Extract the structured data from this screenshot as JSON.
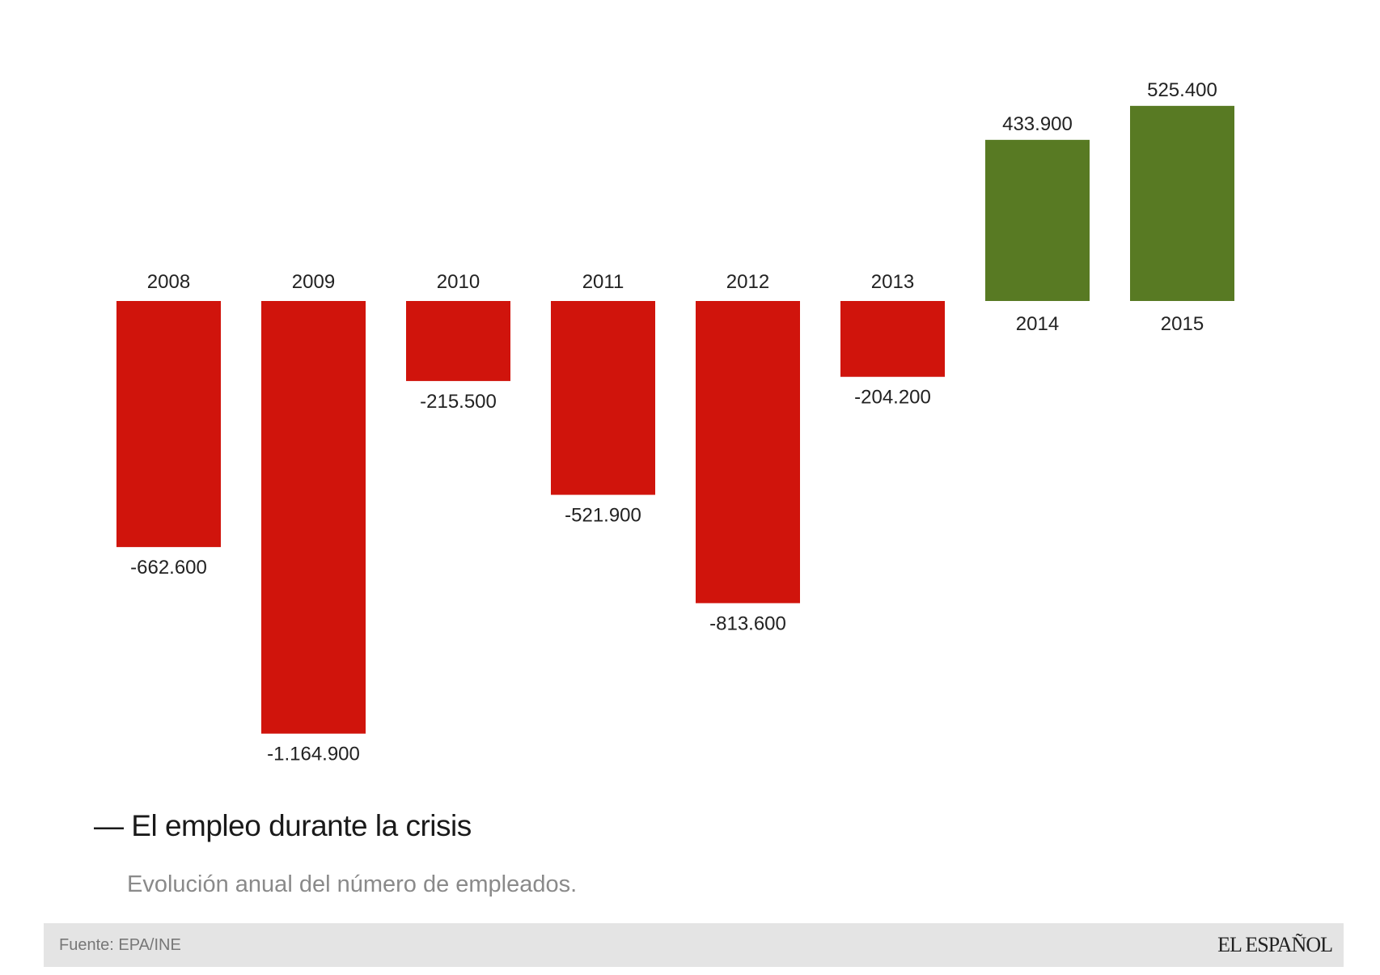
{
  "chart_data": {
    "type": "bar",
    "title": "El empleo durante la crisis",
    "subtitle": "Evolución anual del número de empleados.",
    "categories": [
      "2008",
      "2009",
      "2010",
      "2011",
      "2012",
      "2013",
      "2014",
      "2015"
    ],
    "values": [
      -662600,
      -1164900,
      -215500,
      -521900,
      -813600,
      -204200,
      433900,
      525400
    ],
    "value_labels": [
      "-662.600",
      "-1.164.900",
      "-215.500",
      "-521.900",
      "-813.600",
      "-204.200",
      "433.900",
      "525.400"
    ],
    "xlabel": "",
    "ylabel": "",
    "grid": false,
    "colors": {
      "negative": "#d0140c",
      "positive": "#587a23"
    }
  },
  "title_dash": "—",
  "footer": {
    "source": "Fuente: EPA/INE",
    "logo": "EL ESPAÑOL"
  }
}
